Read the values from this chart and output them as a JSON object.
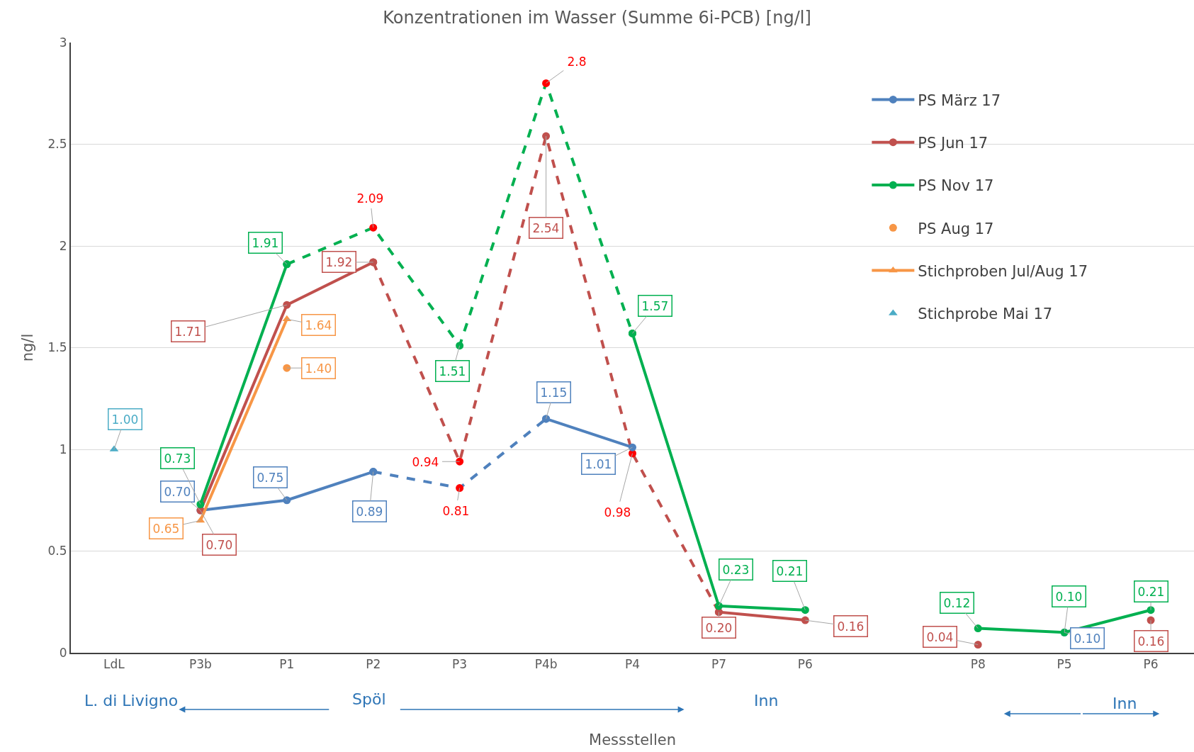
{
  "chart_data": {
    "type": "line",
    "title": "Konzentrationen im Wasser (Summe 6i-PCB) [ng/l]",
    "xlabel": "Messstellen",
    "ylabel": "ng/l",
    "categories": [
      "LdL",
      "P3b",
      "P1",
      "P2",
      "P3",
      "P4b",
      "P4",
      "P7",
      "P6",
      null,
      "P8",
      "P5",
      "P6"
    ],
    "ylim": [
      0,
      3
    ],
    "yticks": [
      0,
      0.5,
      1,
      1.5,
      2,
      2.5,
      3
    ],
    "grid": "y",
    "legend": "top right",
    "marker": "circle",
    "line_style": "solid",
    "series": [
      {
        "color": "#4f81bd",
        "line_style": "dashed",
        "values": [
          null,
          null,
          null,
          0.89,
          0.81,
          1.15,
          null,
          null,
          null,
          null,
          null,
          null,
          null
        ],
        "colors": [
          null,
          null,
          null,
          "#4f81bd",
          "#ff0000",
          "#4f81bd",
          null,
          null,
          null,
          null,
          null,
          null,
          null
        ],
        "value_labels": [
          null,
          null,
          null,
          null,
          "0.81",
          null,
          null,
          null,
          null,
          null,
          null,
          null,
          null
        ]
      },
      {
        "color": "#c0504d",
        "line_style": "dashed",
        "values": [
          null,
          null,
          null,
          1.92,
          0.94,
          2.54,
          0.98,
          0.2,
          null,
          null,
          null,
          null,
          null
        ],
        "colors": [
          null,
          null,
          null,
          "#c0504d",
          "#ff0000",
          "#c0504d",
          "#ff0000",
          "#c0504d",
          null,
          null,
          null,
          null,
          null
        ],
        "value_labels": [
          null,
          null,
          null,
          null,
          "0.94",
          "2.54",
          "0.98",
          null,
          null,
          null,
          null,
          null,
          null
        ]
      },
      {
        "color": "#00b050",
        "line_style": "dashed",
        "values": [
          null,
          null,
          1.91,
          2.09,
          1.51,
          2.8,
          1.57,
          null,
          null,
          null,
          null,
          null,
          null
        ],
        "colors": [
          null,
          null,
          "#00b050",
          "#ff0000",
          "#00b050",
          "#ff0000",
          "#00b050",
          null,
          null,
          null,
          null,
          null,
          null
        ],
        "value_labels": [
          null,
          null,
          null,
          "2.09",
          "1.51",
          "2.8",
          null,
          null,
          null,
          null,
          null,
          null,
          null
        ]
      },
      {
        "name": "PS März 17",
        "color": "#4f81bd",
        "values": [
          null,
          0.7,
          0.75,
          0.89,
          null,
          1.15,
          1.01,
          null,
          null,
          null,
          null,
          0.1,
          null
        ],
        "value_labels": [
          null,
          "0.70",
          "0.75",
          "0.89",
          null,
          "1.15",
          "1.01",
          null,
          null,
          null,
          null,
          "0.10",
          null
        ]
      },
      {
        "name": "PS Jun 17",
        "color": "#c0504d",
        "values": [
          null,
          0.7,
          1.71,
          1.92,
          null,
          null,
          null,
          0.2,
          0.16,
          null,
          0.04,
          null,
          0.16
        ],
        "value_labels": [
          null,
          "0.70",
          "1.71",
          "1.92",
          null,
          null,
          null,
          "0.20",
          "0.16",
          null,
          "0.04",
          null,
          "0.16"
        ]
      },
      {
        "name": "PS Nov 17",
        "color": "#00b050",
        "values": [
          null,
          0.73,
          1.91,
          null,
          null,
          null,
          1.57,
          0.23,
          0.21,
          null,
          0.12,
          0.1,
          0.21
        ],
        "value_labels": [
          null,
          "0.73",
          "1.91",
          null,
          null,
          null,
          "1.57",
          "0.23",
          "0.21",
          null,
          "0.12",
          "0.10",
          "0.21"
        ]
      },
      {
        "name": "PS Aug 17",
        "color": "#f79646",
        "type": "scatter",
        "values": [
          null,
          null,
          1.4,
          null,
          null,
          null,
          null,
          null,
          null,
          null,
          null,
          null,
          null
        ],
        "value_labels": [
          null,
          null,
          "1.40",
          null,
          null,
          null,
          null,
          null,
          null,
          null,
          null,
          null,
          null
        ]
      },
      {
        "name": "Stichproben Jul/Aug 17",
        "color": "#f79646",
        "marker": "triangle",
        "values": [
          null,
          0.65,
          1.64,
          null,
          null,
          null,
          null,
          null,
          null,
          null,
          null,
          null,
          null
        ],
        "value_labels": [
          null,
          "0.65",
          "1.64",
          null,
          null,
          null,
          null,
          null,
          null,
          null,
          null,
          null,
          null
        ]
      },
      {
        "name": "Stichprobe Mai 17",
        "color": "#4bacc6",
        "type": "scatter",
        "marker": "triangle",
        "values": [
          1.0,
          null,
          null,
          null,
          null,
          null,
          null,
          null,
          null,
          null,
          null,
          null,
          null
        ],
        "value_labels": [
          "1.00",
          null,
          null,
          null,
          null,
          null,
          null,
          null,
          null,
          null,
          null,
          null,
          null
        ]
      }
    ],
    "annotations": [
      "L. di Livigno",
      "Spöl",
      "Inn",
      "Inn"
    ]
  }
}
